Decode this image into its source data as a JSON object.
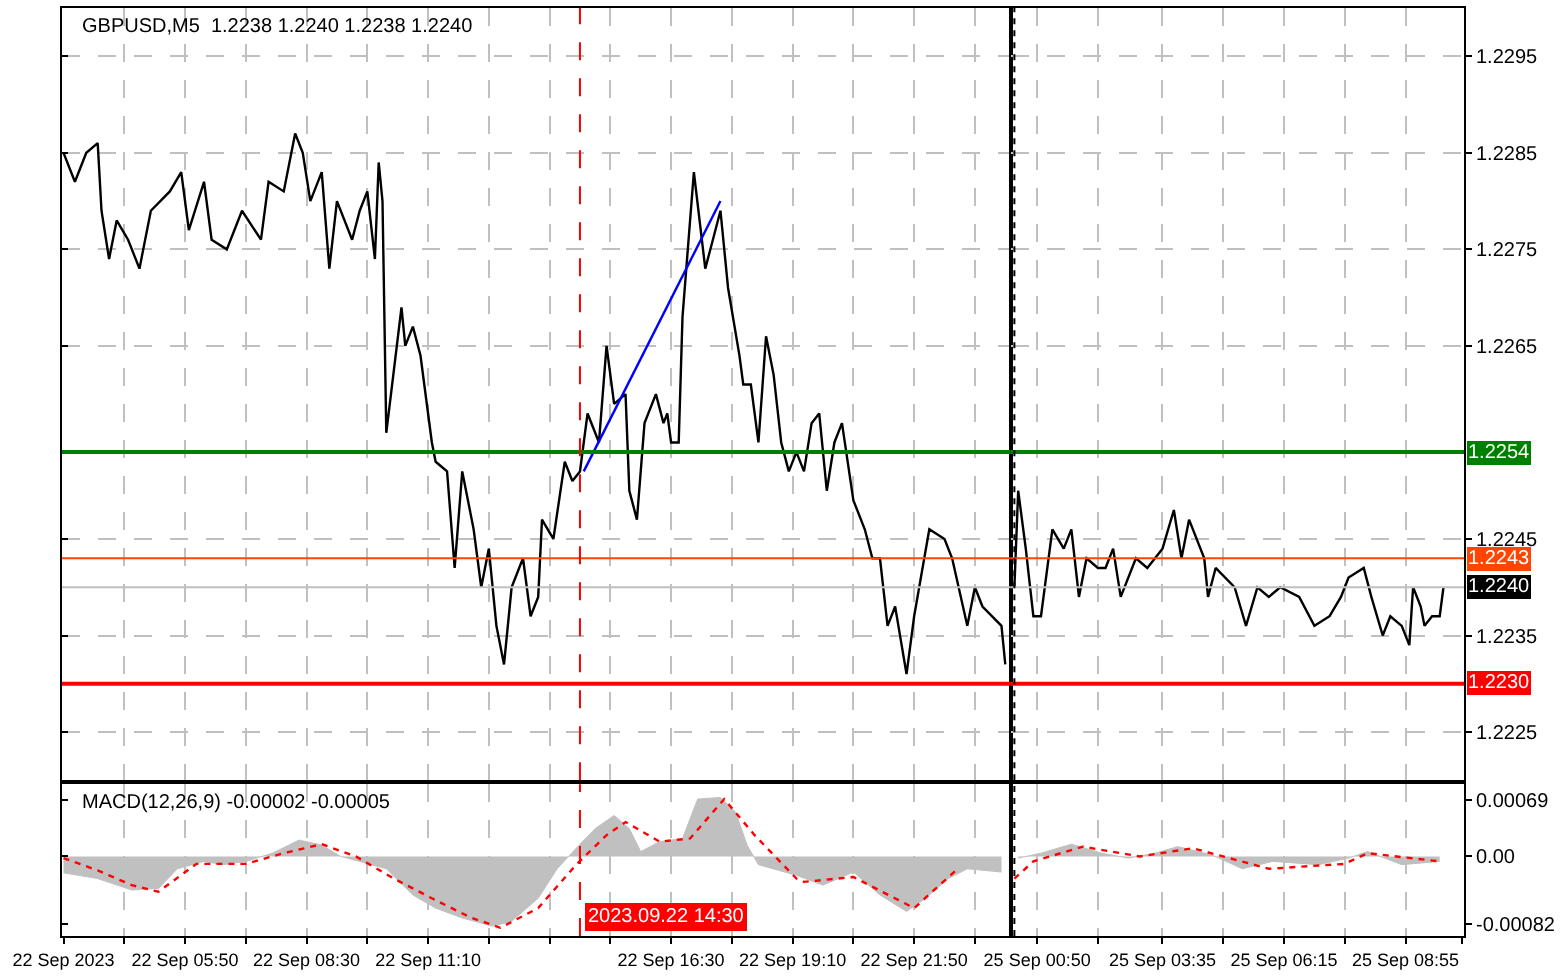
{
  "chart_data": [
    {
      "type": "line",
      "title": "GBPUSD,M5  1.2238 1.2240 1.2238 1.2240",
      "x": [
        "2023-09-22T03:10",
        "2023-09-22T03:25",
        "2023-09-22T03:40",
        "2023-09-22T03:55",
        "2023-09-22T04:00",
        "2023-09-22T04:10",
        "2023-09-22T04:20",
        "2023-09-22T04:35",
        "2023-09-22T04:50",
        "2023-09-22T05:05",
        "2023-09-22T05:30",
        "2023-09-22T05:45",
        "2023-09-22T05:55",
        "2023-09-22T06:15",
        "2023-09-22T06:25",
        "2023-09-22T06:45",
        "2023-09-22T07:05",
        "2023-09-22T07:30",
        "2023-09-22T07:40",
        "2023-09-22T08:00",
        "2023-09-22T08:15",
        "2023-09-22T08:25",
        "2023-09-22T08:35",
        "2023-09-22T08:50",
        "2023-09-22T09:00",
        "2023-09-22T09:10",
        "2023-09-22T09:30",
        "2023-09-22T09:40",
        "2023-09-22T09:50",
        "2023-09-22T10:00",
        "2023-09-22T10:05",
        "2023-09-22T10:10",
        "2023-09-22T10:15",
        "2023-09-22T10:35",
        "2023-09-22T10:40",
        "2023-09-22T10:50",
        "2023-09-22T11:00",
        "2023-09-22T11:15",
        "2023-09-22T11:20",
        "2023-09-22T11:35",
        "2023-09-22T11:45",
        "2023-09-22T11:55",
        "2023-09-22T12:10",
        "2023-09-22T12:20",
        "2023-09-22T12:30",
        "2023-09-22T12:40",
        "2023-09-22T12:50",
        "2023-09-22T13:00",
        "2023-09-22T13:15",
        "2023-09-22T13:25",
        "2023-09-22T13:35",
        "2023-09-22T13:40",
        "2023-09-22T13:55",
        "2023-09-22T14:10",
        "2023-09-22T14:20",
        "2023-09-22T14:30",
        "2023-09-22T14:40",
        "2023-09-22T14:50",
        "2023-09-22T14:55",
        "2023-09-22T15:05",
        "2023-09-22T15:15",
        "2023-09-22T15:30",
        "2023-09-22T15:35",
        "2023-09-22T15:45",
        "2023-09-22T15:55",
        "2023-09-22T16:10",
        "2023-09-22T16:20",
        "2023-09-22T16:25",
        "2023-09-22T16:30",
        "2023-09-22T16:40",
        "2023-09-22T16:45",
        "2023-09-22T17:00",
        "2023-09-22T17:15",
        "2023-09-22T17:25",
        "2023-09-22T17:35",
        "2023-09-22T17:45",
        "2023-09-22T18:00",
        "2023-09-22T18:05",
        "2023-09-22T18:15",
        "2023-09-22T18:25",
        "2023-09-22T18:35",
        "2023-09-22T18:45",
        "2023-09-22T18:55",
        "2023-09-22T19:05",
        "2023-09-22T19:15",
        "2023-09-22T19:25",
        "2023-09-22T19:35",
        "2023-09-22T19:45",
        "2023-09-22T19:55",
        "2023-09-22T20:05",
        "2023-09-22T20:15",
        "2023-09-22T20:30",
        "2023-09-22T20:45",
        "2023-09-22T20:55",
        "2023-09-22T21:05",
        "2023-09-22T21:15",
        "2023-09-22T21:25",
        "2023-09-22T21:40",
        "2023-09-22T21:50",
        "2023-09-22T22:10",
        "2023-09-22T22:30",
        "2023-09-22T22:40",
        "2023-09-22T23:00",
        "2023-09-22T23:10",
        "2023-09-22T23:20",
        "2023-09-22T23:45",
        "2023-09-22T23:50"
      ],
      "series": [
        {
          "color": "#000000",
          "values": [
            1.2285,
            1.2282,
            1.2285,
            1.2286,
            1.2279,
            1.2274,
            1.2278,
            1.2276,
            1.2273,
            1.2279,
            1.2281,
            1.2283,
            1.2277,
            1.2282,
            1.2276,
            1.2275,
            1.2279,
            1.2276,
            1.2282,
            1.2281,
            1.2287,
            1.2285,
            1.228,
            1.2283,
            1.2273,
            1.228,
            1.2276,
            1.2279,
            1.2281,
            1.2274,
            1.2284,
            1.228,
            1.2256,
            1.2269,
            1.2265,
            1.2267,
            1.2264,
            1.2255,
            1.2253,
            1.2252,
            1.2242,
            1.2252,
            1.2246,
            1.224,
            1.2244,
            1.2236,
            1.2232,
            1.224,
            1.2243,
            1.2237,
            1.2239,
            1.2247,
            1.2245,
            1.2253,
            1.2251,
            1.2252,
            1.2258,
            1.2256,
            1.2255,
            1.2265,
            1.2259,
            1.226,
            1.225,
            1.2247,
            1.2257,
            1.226,
            1.2257,
            1.2258,
            1.2255,
            1.2255,
            1.2268,
            1.2283,
            1.2273,
            1.2276,
            1.2279,
            1.2271,
            1.2264,
            1.2261,
            1.2261,
            1.2255,
            1.2266,
            1.2262,
            1.2255,
            1.2252,
            1.2254,
            1.2252,
            1.2257,
            1.2258,
            1.225,
            1.2255,
            1.2257,
            1.2249,
            1.2246,
            1.2243,
            1.2243,
            1.2236,
            1.2238,
            1.2231,
            1.2237,
            1.2246,
            1.2245,
            1.2243,
            1.2236,
            1.224,
            1.2238,
            1.2236,
            1.2232
          ]
        },
        {
          "type": "line",
          "color": "#0000ff",
          "x": [
            "2023-09-22T14:35",
            "2023-09-22T17:35"
          ],
          "values": [
            1.2252,
            1.228
          ]
        }
      ],
      "xlim": [
        "2023-09-22T03:08",
        "2023-09-22T23:57"
      ],
      "xticks": [
        {
          "value": "2023-09-22T03:10",
          "label": null
        },
        {
          "value": "2023-09-22T04:30",
          "label": null
        },
        {
          "value": "2023-09-22T05:50",
          "label": null
        },
        {
          "value": "2023-09-22T07:10",
          "label": null
        },
        {
          "value": "2023-09-22T08:30",
          "label": null
        },
        {
          "value": "2023-09-22T09:50",
          "label": null
        },
        {
          "value": "2023-09-22T11:10",
          "label": null
        },
        {
          "value": "2023-09-22T12:30",
          "label": null
        },
        {
          "value": "2023-09-22T13:50",
          "label": null
        },
        {
          "value": "2023-09-22T15:10",
          "label": null
        },
        {
          "value": "2023-09-22T16:30",
          "label": null
        },
        {
          "value": "2023-09-22T17:50",
          "label": null
        },
        {
          "value": "2023-09-22T19:10",
          "label": null
        },
        {
          "value": "2023-09-22T20:30",
          "label": null
        },
        {
          "value": "2023-09-22T21:50",
          "label": null
        },
        {
          "value": "2023-09-22T23:10",
          "label": null
        }
      ],
      "ylim": [
        1.222,
        1.23
      ],
      "yticks": [
        {
          "value": 1.2225,
          "label": null
        },
        {
          "value": 1.2235,
          "label": null
        },
        {
          "value": 1.2245,
          "label": null
        },
        {
          "value": 1.2265,
          "label": null
        },
        {
          "value": 1.2275,
          "label": null
        },
        {
          "value": 1.2285,
          "label": null
        },
        {
          "value": 1.2295,
          "label": null
        }
      ],
      "tick_labels": false,
      "ref_lines": [
        {
          "axis": "y",
          "value": 1.2254,
          "color": "#008000"
        },
        {
          "axis": "y",
          "value": 1.2243,
          "color": "#ff4500"
        },
        {
          "axis": "y",
          "value": 1.224,
          "color": "#c0c0c0"
        },
        {
          "axis": "y",
          "value": 1.223,
          "color": "#ff0000"
        },
        {
          "axis": "x",
          "value": "2023-09-22T14:30",
          "color": "#ff0000",
          "line_style": "dashed"
        }
      ],
      "grid": true
    },
    {
      "type": "line",
      "x": [
        "2023-09-25T00:20",
        "2023-09-25T00:25",
        "2023-09-25T00:35",
        "2023-09-25T00:45",
        "2023-09-25T00:55",
        "2023-09-25T01:10",
        "2023-09-25T01:25",
        "2023-09-25T01:35",
        "2023-09-25T01:45",
        "2023-09-25T01:55",
        "2023-09-25T02:10",
        "2023-09-25T02:20",
        "2023-09-25T02:30",
        "2023-09-25T02:40",
        "2023-09-25T03:00",
        "2023-09-25T03:15",
        "2023-09-25T03:35",
        "2023-09-25T03:50",
        "2023-09-25T04:00",
        "2023-09-25T04:10",
        "2023-09-25T04:30",
        "2023-09-25T04:35",
        "2023-09-25T04:45",
        "2023-09-25T05:10",
        "2023-09-25T05:25",
        "2023-09-25T05:40",
        "2023-09-25T05:55",
        "2023-09-25T06:10",
        "2023-09-25T06:35",
        "2023-09-25T06:55",
        "2023-09-25T07:15",
        "2023-09-25T07:30",
        "2023-09-25T07:40",
        "2023-09-25T08:00",
        "2023-09-25T08:10",
        "2023-09-25T08:25",
        "2023-09-25T08:35",
        "2023-09-25T08:50",
        "2023-09-25T09:00",
        "2023-09-25T09:05",
        "2023-09-25T09:15",
        "2023-09-25T09:20",
        "2023-09-25T09:30",
        "2023-09-25T09:40",
        "2023-09-25T09:45"
      ],
      "series": [
        {
          "color": "#000000",
          "values": [
            1.224,
            1.225,
            1.2244,
            1.2237,
            1.2237,
            1.2246,
            1.2244,
            1.2246,
            1.2239,
            1.2243,
            1.2242,
            1.2242,
            1.2244,
            1.2239,
            1.2243,
            1.2242,
            1.2244,
            1.2248,
            1.2243,
            1.2247,
            1.2243,
            1.2239,
            1.2242,
            1.224,
            1.2236,
            1.224,
            1.2239,
            1.224,
            1.2239,
            1.2236,
            1.2237,
            1.2239,
            1.2241,
            1.2242,
            1.2239,
            1.2235,
            1.2237,
            1.2236,
            1.2234,
            1.224,
            1.2238,
            1.2236,
            1.2237,
            1.2237,
            1.224
          ]
        }
      ],
      "xlim": [
        "2023-09-25T00:15",
        "2023-09-25T10:12"
      ],
      "xticks": [
        {
          "value": "2023-09-25T00:50",
          "label": null
        },
        {
          "value": "2023-09-25T02:10",
          "label": null
        },
        {
          "value": "2023-09-25T03:35",
          "label": null
        },
        {
          "value": "2023-09-25T04:55",
          "label": null
        },
        {
          "value": "2023-09-25T06:15",
          "label": null
        },
        {
          "value": "2023-09-25T07:35",
          "label": null
        },
        {
          "value": "2023-09-25T08:55",
          "label": null
        },
        {
          "value": "2023-09-25T10:10",
          "label": null
        }
      ],
      "ylim": [
        1.222,
        1.23
      ],
      "yticks": [
        1.2225,
        1.2235,
        1.2245,
        1.2265,
        1.2275,
        1.2285,
        1.2295
      ],
      "tick_labels": "y",
      "ref_lines": [
        {
          "axis": "y",
          "value": 1.2254,
          "label": "1.2254",
          "color": "#008000"
        },
        {
          "axis": "y",
          "value": 1.2243,
          "label": "1.2243",
          "color": "#ff4500"
        },
        {
          "axis": "y",
          "value": 1.224,
          "label": "1.2240",
          "color": "#c0c0c0"
        },
        {
          "axis": "y",
          "value": 1.223,
          "label": "1.2230",
          "color": "#ff0000"
        },
        {
          "axis": "x",
          "value": "2023-09-25T00:20",
          "color": "#000000",
          "line_style": "dotted"
        }
      ],
      "grid": true
    },
    {
      "type": "area",
      "title": "MACD(12,26,9) -0.00002 -0.00005",
      "series": [
        {
          "type": "area",
          "color": "#c0c0c0",
          "x": [
            "2023-09-22T03:10",
            "2023-09-22T03:55",
            "2023-09-22T04:40",
            "2023-09-22T05:15",
            "2023-09-22T05:40",
            "2023-09-22T06:15",
            "2023-09-22T06:40",
            "2023-09-22T07:10",
            "2023-09-22T07:45",
            "2023-09-22T08:20",
            "2023-09-22T08:50",
            "2023-09-22T09:15",
            "2023-09-22T09:40",
            "2023-09-22T10:15",
            "2023-09-22T10:50",
            "2023-09-22T11:20",
            "2023-09-22T11:55",
            "2023-09-22T12:35",
            "2023-09-22T13:00",
            "2023-09-22T13:35",
            "2023-09-22T14:00",
            "2023-09-22T14:25",
            "2023-09-22T14:50",
            "2023-09-22T15:15",
            "2023-09-22T15:35",
            "2023-09-22T15:50",
            "2023-09-22T16:15",
            "2023-09-22T16:45",
            "2023-09-22T17:05",
            "2023-09-22T17:35",
            "2023-09-22T17:55",
            "2023-09-22T18:10",
            "2023-09-22T18:25",
            "2023-09-22T19:15",
            "2023-09-22T19:50",
            "2023-09-22T20:30",
            "2023-09-22T21:05",
            "2023-09-22T21:40",
            "2023-09-22T22:05",
            "2023-09-22T22:35",
            "2023-09-22T23:00",
            "2023-09-22T23:45"
          ],
          "values": [
            -0.0002,
            -0.00027,
            -0.00041,
            -0.00039,
            -0.00015,
            -6e-05,
            -0.0001,
            -6e-05,
            4e-05,
            0.0002,
            0.00014,
            0,
            -6e-05,
            -0.00015,
            -0.00047,
            -0.00063,
            -0.00075,
            -0.00085,
            -0.00079,
            -0.00051,
            -0.00015,
            0.0001,
            0.00034,
            0.0005,
            0.00034,
            6e-05,
            0.00018,
            0.00022,
            0.0007,
            0.00072,
            0.00054,
            0.00014,
            -0.0001,
            -0.00023,
            -0.00035,
            -0.00019,
            -0.00047,
            -0.00067,
            -0.00051,
            -0.00027,
            -0.00015,
            -0.00019
          ]
        },
        {
          "type": "line",
          "color": "#ff0000",
          "line_style": "dotted",
          "x": [
            "2023-09-22T03:10",
            "2023-09-22T03:55",
            "2023-09-22T04:40",
            "2023-09-22T05:15",
            "2023-09-22T06:05",
            "2023-09-22T07:10",
            "2023-09-22T08:00",
            "2023-09-22T08:50",
            "2023-09-22T09:35",
            "2023-09-22T10:25",
            "2023-09-22T11:15",
            "2023-09-22T12:05",
            "2023-09-22T12:45",
            "2023-09-22T13:35",
            "2023-09-22T14:25",
            "2023-09-22T15:05",
            "2023-09-22T15:30",
            "2023-09-22T16:15",
            "2023-09-22T16:55",
            "2023-09-22T17:40",
            "2023-09-22T18:20",
            "2023-09-22T19:15",
            "2023-09-22T19:25",
            "2023-09-22T20:30",
            "2023-09-22T21:50",
            "2023-09-22T22:45"
          ],
          "values": [
            -2e-05,
            -0.00017,
            -0.00035,
            -0.00043,
            -9e-05,
            -9e-05,
            4e-05,
            0.00015,
            0,
            -0.00027,
            -0.00051,
            -0.00074,
            -0.00087,
            -0.00063,
            -0.0001,
            0.00026,
            0.00042,
            0.00018,
            0.00022,
            0.0007,
            0.00026,
            -0.00027,
            -0.00031,
            -0.00025,
            -0.00063,
            -0.00017
          ]
        }
      ],
      "xlim": [
        "2023-09-22T03:08",
        "2023-09-22T23:57"
      ],
      "xticks": [
        {
          "value": "2023-09-22T03:10",
          "label": "22 Sep 2023"
        },
        {
          "value": "2023-09-22T04:30",
          "label": null
        },
        {
          "value": "2023-09-22T05:50",
          "label": "22 Sep 05:50"
        },
        {
          "value": "2023-09-22T07:10",
          "label": null
        },
        {
          "value": "2023-09-22T08:30",
          "label": "22 Sep 08:30"
        },
        {
          "value": "2023-09-22T09:50",
          "label": null
        },
        {
          "value": "2023-09-22T11:10",
          "label": "22 Sep 11:10"
        },
        {
          "value": "2023-09-22T12:30",
          "label": null
        },
        {
          "value": "2023-09-22T13:50",
          "label": null
        },
        {
          "value": "2023-09-22T15:10",
          "label": null
        },
        {
          "value": "2023-09-22T16:30",
          "label": "22 Sep 16:30"
        },
        {
          "value": "2023-09-22T17:50",
          "label": null
        },
        {
          "value": "2023-09-22T19:10",
          "label": "22 Sep 19:10"
        },
        {
          "value": "2023-09-22T20:30",
          "label": null
        },
        {
          "value": "2023-09-22T21:50",
          "label": "22 Sep 21:50"
        },
        {
          "value": "2023-09-22T23:10",
          "label": null
        }
      ],
      "ylim": [
        -0.00097,
        0.00088
      ],
      "yticks": [
        {
          "value": -0.00082,
          "label": null
        },
        {
          "value": 0,
          "label": null
        },
        {
          "value": 0.00069,
          "label": null
        }
      ],
      "tick_labels": "x",
      "ref_lines": [
        {
          "axis": "x",
          "value": "2023-09-22T14:30",
          "label": "2023.09.22 14:30",
          "color": "#ff0000",
          "line_style": "dashed"
        }
      ],
      "grid": "x"
    },
    {
      "type": "area",
      "series": [
        {
          "type": "area",
          "color": "#c0c0c0",
          "x": [
            "2023-09-25T00:25",
            "2023-09-25T00:55",
            "2023-09-25T01:35",
            "2023-09-25T02:15",
            "2023-09-25T02:50",
            "2023-09-25T03:25",
            "2023-09-25T03:55",
            "2023-09-25T04:40",
            "2023-09-25T05:20",
            "2023-09-25T06:00",
            "2023-09-25T07:00",
            "2023-09-25T07:40",
            "2023-09-25T08:05",
            "2023-09-25T08:50",
            "2023-09-25T09:40"
          ],
          "values": [
            -2e-05,
            4e-05,
            0.00015,
            4e-05,
            -2e-05,
            4e-05,
            0.00012,
            2e-05,
            -0.00015,
            -6e-05,
            -0.0001,
            -2e-05,
            6e-05,
            -0.0001,
            -6e-05
          ]
        },
        {
          "type": "line",
          "color": "#ff0000",
          "line_style": "dotted",
          "x": [
            "2023-09-25T00:20",
            "2023-09-25T00:45",
            "2023-09-25T01:50",
            "2023-09-25T03:05",
            "2023-09-25T04:15",
            "2023-09-25T05:55",
            "2023-09-25T07:35",
            "2023-09-25T08:05",
            "2023-09-25T09:40"
          ],
          "values": [
            -0.00027,
            -6e-05,
            0.00012,
            0,
            0.0001,
            -0.00015,
            -9e-05,
            4e-05,
            -6e-05
          ]
        }
      ],
      "xlim": [
        "2023-09-25T00:15",
        "2023-09-25T10:12"
      ],
      "xticks": [
        {
          "value": "2023-09-25T00:50",
          "label": "25 Sep 00:50"
        },
        {
          "value": "2023-09-25T02:10",
          "label": null
        },
        {
          "value": "2023-09-25T03:35",
          "label": "25 Sep 03:35"
        },
        {
          "value": "2023-09-25T04:55",
          "label": null
        },
        {
          "value": "2023-09-25T06:15",
          "label": "25 Sep 06:15"
        },
        {
          "value": "2023-09-25T07:35",
          "label": null
        },
        {
          "value": "2023-09-25T08:55",
          "label": "25 Sep 08:55"
        },
        {
          "value": "2023-09-25T10:10",
          "label": null
        }
      ],
      "ylim": [
        -0.00097,
        0.00088
      ],
      "yticks": [
        -0.00082,
        {
          "value": 0,
          "label": "0.00"
        },
        0.00069
      ],
      "ref_lines": [
        {
          "axis": "x",
          "value": "2023-09-25T00:20",
          "color": "#000000",
          "line_style": "dotted"
        }
      ],
      "grid": "x"
    }
  ]
}
